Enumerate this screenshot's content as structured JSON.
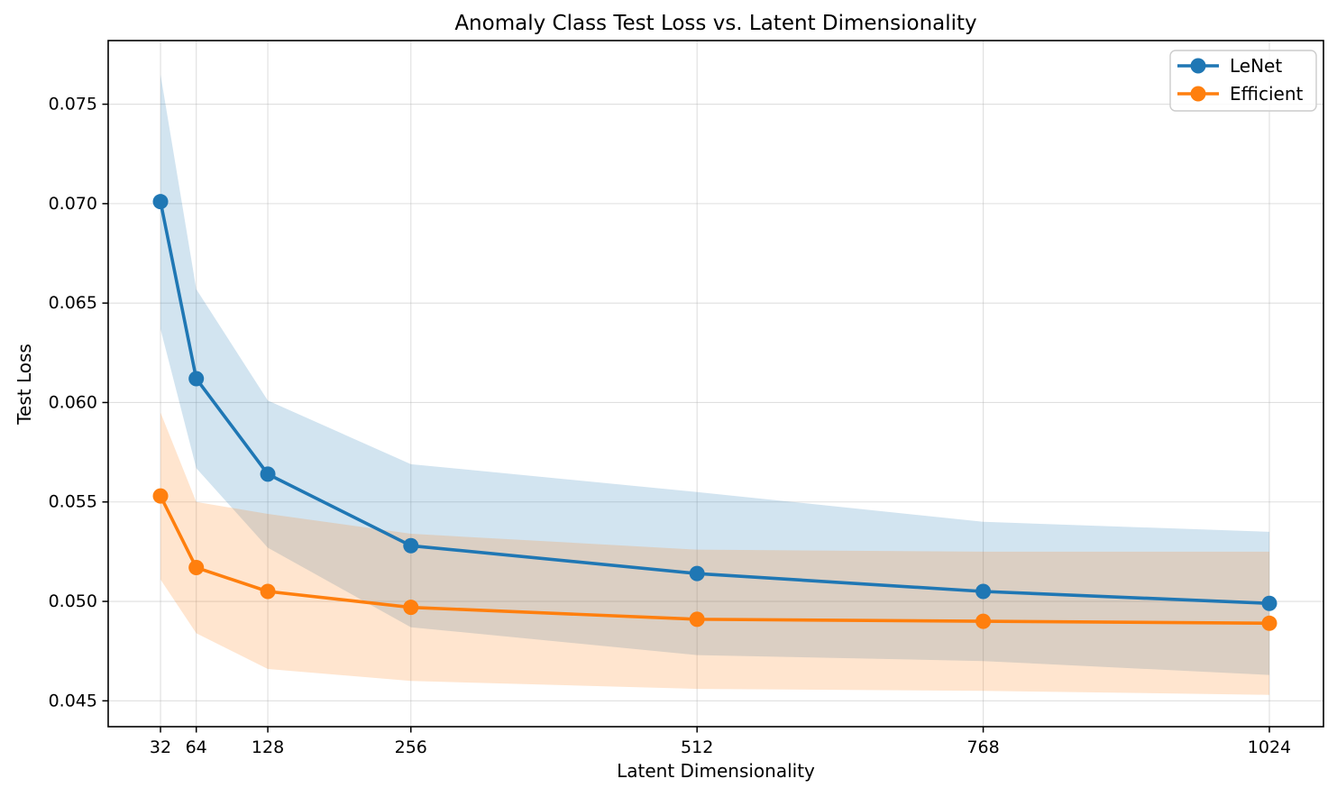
{
  "figure": {
    "background": "#ffffff",
    "spine_color": "#000000",
    "grid_color": "#b0b0b0"
  },
  "chart_data": {
    "type": "line",
    "title": "Anomaly Class Test Loss vs. Latent Dimensionality",
    "xlabel": "Latent Dimensionality",
    "ylabel": "Test Loss",
    "x": [
      32,
      64,
      128,
      256,
      512,
      768,
      1024
    ],
    "x_tick_labels": [
      "32",
      "64",
      "128",
      "256",
      "512",
      "768",
      "1024"
    ],
    "y_ticks": [
      0.045,
      0.05,
      0.055,
      0.06,
      0.065,
      0.07,
      0.075
    ],
    "y_tick_labels": [
      "0.045",
      "0.050",
      "0.055",
      "0.060",
      "0.065",
      "0.070",
      "0.075"
    ],
    "xlim": [
      -14.8,
      1072.4
    ],
    "ylim": [
      0.0437,
      0.0782
    ],
    "grid": true,
    "band_alpha": 0.2,
    "legend": {
      "position": "upper right",
      "entries": [
        "LeNet",
        "Efficient"
      ]
    },
    "series": [
      {
        "name": "LeNet",
        "color": "#1f77b4",
        "values": [
          0.0701,
          0.0612,
          0.0564,
          0.0528,
          0.0514,
          0.0505,
          0.0499
        ],
        "band_upper": [
          0.0765,
          0.0657,
          0.0601,
          0.0569,
          0.0555,
          0.054,
          0.0535
        ],
        "band_lower": [
          0.0637,
          0.0567,
          0.0527,
          0.0487,
          0.0473,
          0.047,
          0.0463
        ]
      },
      {
        "name": "Efficient",
        "color": "#ff7f0e",
        "values": [
          0.0553,
          0.0517,
          0.0505,
          0.0497,
          0.0491,
          0.049,
          0.0489
        ],
        "band_upper": [
          0.0595,
          0.055,
          0.0544,
          0.0534,
          0.0526,
          0.0525,
          0.0525
        ],
        "band_lower": [
          0.0511,
          0.0484,
          0.0466,
          0.046,
          0.0456,
          0.0455,
          0.0453
        ]
      }
    ]
  }
}
